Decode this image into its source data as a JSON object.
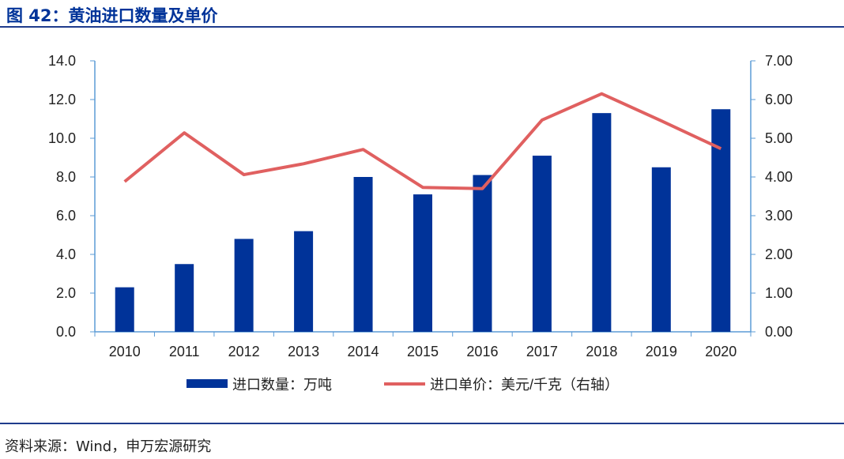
{
  "title": "图 42：黄油进口数量及单价",
  "source": "资料来源：Wind，申万宏源研究",
  "colors": {
    "bar": "#003399",
    "line": "#e06060",
    "axis": "#5b9bd5"
  },
  "chart_data": {
    "type": "bar+line",
    "categories": [
      "2010",
      "2011",
      "2012",
      "2013",
      "2014",
      "2015",
      "2016",
      "2017",
      "2018",
      "2019",
      "2020"
    ],
    "series": [
      {
        "name": "进口数量：万吨",
        "type": "bar",
        "axis": "left",
        "values": [
          2.3,
          3.5,
          4.8,
          5.2,
          8.0,
          7.1,
          8.1,
          9.1,
          11.3,
          8.5,
          11.5
        ]
      },
      {
        "name": "进口单价：美元/千克（右轴）",
        "type": "line",
        "axis": "right",
        "values": [
          3.88,
          5.14,
          4.06,
          4.34,
          4.71,
          3.73,
          3.7,
          5.47,
          6.15,
          5.45,
          4.73
        ]
      }
    ],
    "ylim_left": [
      0,
      14
    ],
    "yticks_left": [
      "0.0",
      "2.0",
      "4.0",
      "6.0",
      "8.0",
      "10.0",
      "12.0",
      "14.0"
    ],
    "ylim_right": [
      0,
      7
    ],
    "yticks_right": [
      "0.00",
      "1.00",
      "2.00",
      "3.00",
      "4.00",
      "5.00",
      "6.00",
      "7.00"
    ],
    "grid": false,
    "legend": "bottom"
  }
}
